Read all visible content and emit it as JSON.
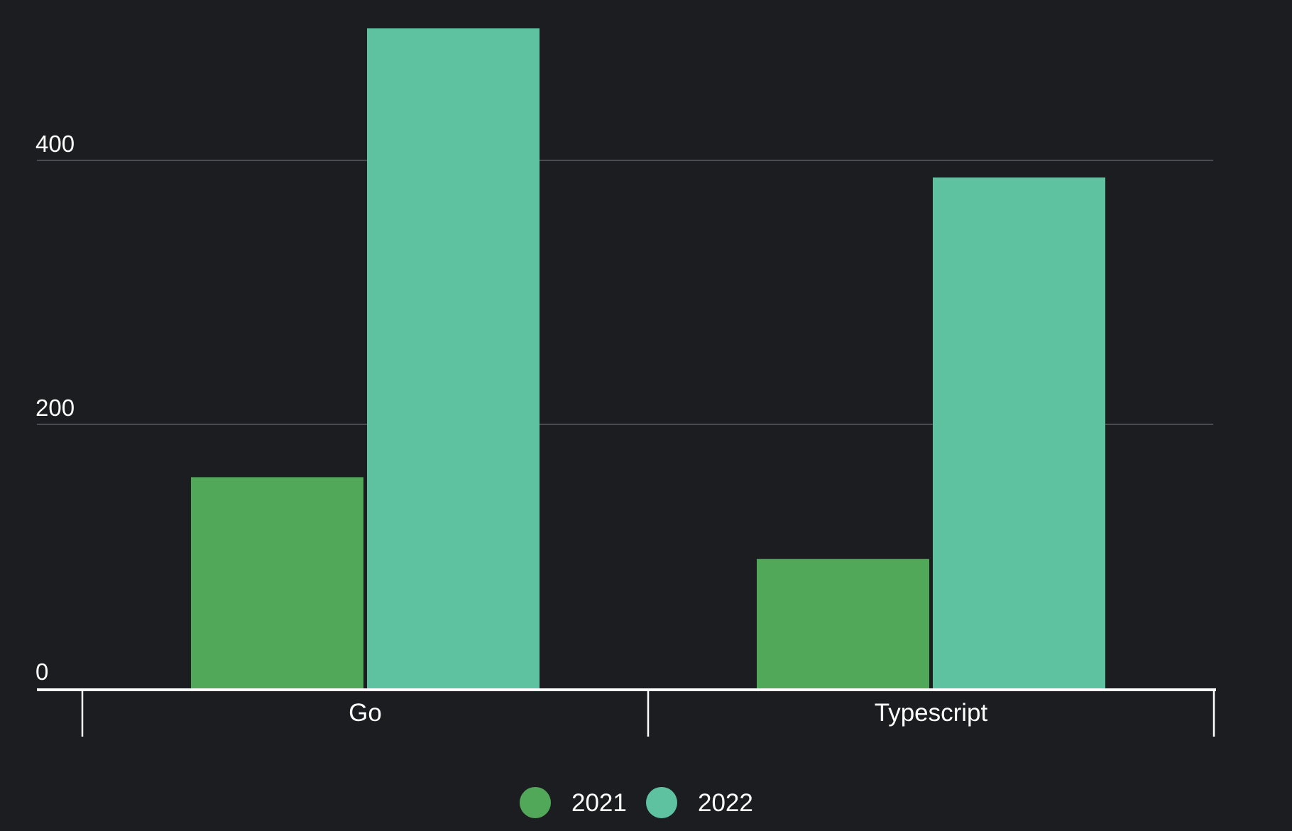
{
  "chart_data": {
    "type": "bar",
    "categories": [
      "Go",
      "Typescript"
    ],
    "series": [
      {
        "name": "2021",
        "values": [
          160,
          98
        ],
        "color": "#52a859"
      },
      {
        "name": "2022",
        "values": [
          500,
          387
        ],
        "color": "#5ec1a0"
      }
    ],
    "yticks": [
      "0",
      "200",
      "400"
    ],
    "ylim": [
      0,
      500
    ],
    "grid": true,
    "legend": "bottom-center",
    "background": "#1c1d21"
  }
}
